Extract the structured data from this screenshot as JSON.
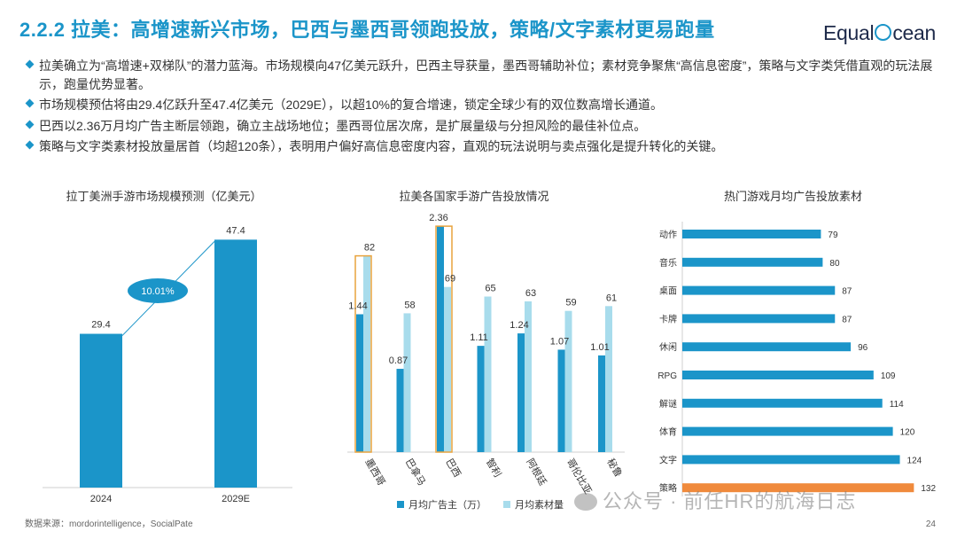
{
  "header": {
    "title": "2.2.2 拉美：高增速新兴市场，巴西与墨西哥领跑投放，策略/文字素材更易跑量",
    "logo_left": "Equal",
    "logo_right": "cean"
  },
  "bullets": [
    "拉美确立为“高增速+双梯队”的潜力蓝海。市场规模向47亿美元跃升，巴西主导获量，墨西哥辅助补位；素材竞争聚焦“高信息密度”，策略与文字类凭借直观的玩法展示，跑量优势显著。",
    "市场规模预估将由29.4亿跃升至47.4亿美元（2029E），以超10%的复合增速，锁定全球少有的双位数高增长通道。",
    "巴西以2.36万月均广告主断层领跑，确立主战场地位；墨西哥位居次席，是扩展量级与分担风险的最佳补位点。",
    "策略与文字类素材投放量居首（均超120条），表明用户偏好高信息密度内容，直观的玩法说明与卖点强化是提升转化的关键。"
  ],
  "chart_data": [
    {
      "type": "bar",
      "title": "拉丁美洲手游市场规模预测（亿美元）",
      "categories": [
        "2024",
        "2029E"
      ],
      "values": [
        29.4,
        47.4
      ],
      "annotation": "10.01%",
      "color": "#1b95c9"
    },
    {
      "type": "bar",
      "title": "拉美各国家手游广告投放情况",
      "categories": [
        "墨西哥",
        "巴拿马",
        "巴西",
        "智利",
        "阿根廷",
        "哥伦比亚",
        "秘鲁"
      ],
      "series": [
        {
          "name": "月均广告主（万）",
          "values": [
            1.44,
            0.87,
            2.36,
            1.11,
            1.24,
            1.07,
            1.01
          ],
          "color": "#1b95c9"
        },
        {
          "name": "月均素材量",
          "values": [
            82,
            58,
            69,
            65,
            63,
            59,
            61
          ],
          "color": "#a8dcec"
        }
      ],
      "highlight": [
        "墨西哥",
        "巴西"
      ],
      "highlight_color": "#e8a33d"
    },
    {
      "type": "bar",
      "orientation": "horizontal",
      "title": "热门游戏月均广告投放素材",
      "categories": [
        "动作",
        "音乐",
        "桌面",
        "卡牌",
        "休闲",
        "RPG",
        "解谜",
        "体育",
        "文字",
        "策略"
      ],
      "values": [
        79,
        80,
        87,
        87,
        96,
        109,
        114,
        120,
        124,
        132
      ],
      "color": "#1b95c9",
      "highlight_color": "#f08a3c",
      "highlight": "策略"
    }
  ],
  "footer": {
    "source": "数据来源：mordorintelligence，SocialPate",
    "page": "24",
    "watermark": "公众号 · 前任HR的航海日志"
  }
}
